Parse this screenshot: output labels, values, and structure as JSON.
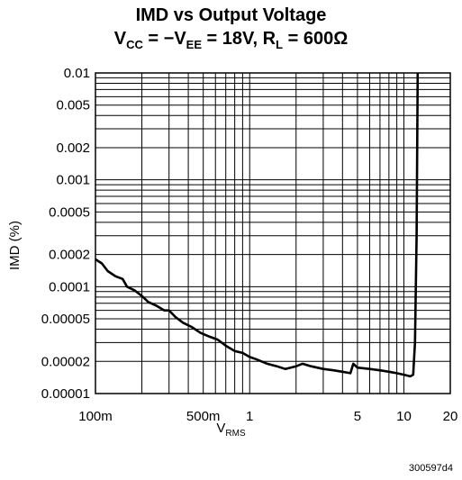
{
  "chart_data": {
    "type": "line",
    "title_line1": "IMD vs Output Voltage",
    "title_line2": {
      "v": "V",
      "cc": "CC",
      "mid1": " = −V",
      "ee": "EE",
      "mid2": " = 18V, R",
      "l": "L",
      "tail": " = 600Ω"
    },
    "ylabel": "IMD (%)",
    "xlabel": {
      "main": "V",
      "sub": "RMS"
    },
    "x_scale": "log",
    "y_scale": "log",
    "xlim": [
      0.1,
      20
    ],
    "ylim": [
      1e-05,
      0.01
    ],
    "x_ticks": [
      {
        "value": 0.1,
        "label": "100m"
      },
      {
        "value": 0.5,
        "label": "500m"
      },
      {
        "value": 1,
        "label": "1"
      },
      {
        "value": 5,
        "label": "5"
      },
      {
        "value": 10,
        "label": "10"
      },
      {
        "value": 20,
        "label": "20"
      }
    ],
    "y_ticks": [
      {
        "value": 0.01,
        "label": "0.01"
      },
      {
        "value": 0.005,
        "label": "0.005"
      },
      {
        "value": 0.002,
        "label": "0.002"
      },
      {
        "value": 0.001,
        "label": "0.001"
      },
      {
        "value": 0.0005,
        "label": "0.0005"
      },
      {
        "value": 0.0002,
        "label": "0.0002"
      },
      {
        "value": 0.0001,
        "label": "0.0001"
      },
      {
        "value": 5e-05,
        "label": "0.00005"
      },
      {
        "value": 2e-05,
        "label": "0.00002"
      },
      {
        "value": 1e-05,
        "label": "0.00001"
      }
    ],
    "grid": true,
    "series": [
      {
        "points": [
          [
            0.1,
            0.00018
          ],
          [
            0.11,
            0.000165
          ],
          [
            0.12,
            0.00014
          ],
          [
            0.135,
            0.000125
          ],
          [
            0.15,
            0.000118
          ],
          [
            0.16,
            0.0001
          ],
          [
            0.18,
            9.2e-05
          ],
          [
            0.2,
            8.2e-05
          ],
          [
            0.22,
            7.2e-05
          ],
          [
            0.25,
            6.6e-05
          ],
          [
            0.28,
            6e-05
          ],
          [
            0.3,
            6e-05
          ],
          [
            0.33,
            5.2e-05
          ],
          [
            0.37,
            4.6e-05
          ],
          [
            0.42,
            4.2e-05
          ],
          [
            0.48,
            3.7e-05
          ],
          [
            0.55,
            3.4e-05
          ],
          [
            0.62,
            3.2e-05
          ],
          [
            0.7,
            2.8e-05
          ],
          [
            0.8,
            2.5e-05
          ],
          [
            0.9,
            2.4e-05
          ],
          [
            1.0,
            2.2e-05
          ],
          [
            1.1,
            2.1e-05
          ],
          [
            1.3,
            1.9e-05
          ],
          [
            1.5,
            1.8e-05
          ],
          [
            1.7,
            1.7e-05
          ],
          [
            2.0,
            1.8e-05
          ],
          [
            2.2,
            1.9e-05
          ],
          [
            2.5,
            1.8e-05
          ],
          [
            3.0,
            1.7e-05
          ],
          [
            3.5,
            1.65e-05
          ],
          [
            4.0,
            1.6e-05
          ],
          [
            4.5,
            1.55e-05
          ],
          [
            4.7,
            1.9e-05
          ],
          [
            5.0,
            1.75e-05
          ],
          [
            6.0,
            1.7e-05
          ],
          [
            7.0,
            1.65e-05
          ],
          [
            8.0,
            1.6e-05
          ],
          [
            9.0,
            1.55e-05
          ],
          [
            10.0,
            1.5e-05
          ],
          [
            11.0,
            1.45e-05
          ],
          [
            11.5,
            1.5e-05
          ],
          [
            11.8,
            3e-05
          ],
          [
            12.1,
            0.0003
          ],
          [
            12.3,
            0.01
          ]
        ]
      }
    ]
  },
  "figure_id": "300597d4"
}
